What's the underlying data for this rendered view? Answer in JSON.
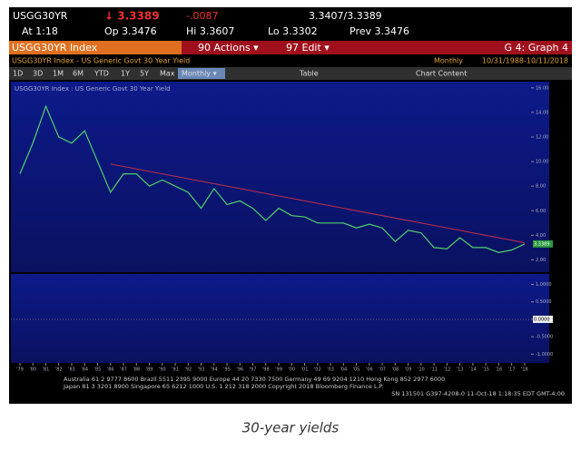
{
  "header": {
    "ticker": "USGG30YR",
    "last": "↓ 3.3389",
    "change": "-.0087",
    "bid_ask": "3.3407/3.3389",
    "time": "At 1:18",
    "open": "Op 3.3476",
    "high": "Hi 3.3607",
    "low": "Lo 3.3302",
    "prev": "Prev 3.3476"
  },
  "menu": {
    "security": "USGG30YR Index",
    "actions": "90 Actions ▾",
    "edit": "97 Edit ▾",
    "graph": "G 4: Graph 4"
  },
  "info": {
    "left": "USGG30YR Index - US Generic Govt 30 Year Yield",
    "period": "Monthly",
    "range": "10/31/1988-10/11/2018"
  },
  "toolbar": [
    "1D",
    "3D",
    "1M",
    "6M",
    "YTD",
    "1Y",
    "5Y",
    "Max",
    "Monthly ▾",
    "Table",
    "Chart Content"
  ],
  "chart_data": {
    "type": "line",
    "title": "USGG30YR Index : US Generic Govt 30 Year Yield",
    "x": [
      1979,
      1980,
      1981,
      1982,
      1983,
      1984,
      1985,
      1986,
      1987,
      1988,
      1989,
      1990,
      1991,
      1992,
      1993,
      1994,
      1995,
      1996,
      1997,
      1998,
      1999,
      2000,
      2001,
      2002,
      2003,
      2004,
      2005,
      2006,
      2007,
      2008,
      2009,
      2010,
      2011,
      2012,
      2013,
      2014,
      2015,
      2016,
      2017,
      2018
    ],
    "series": [
      {
        "name": "USGG30YR",
        "color": "#4fd06a",
        "values": [
          9.0,
          11.5,
          14.5,
          12.0,
          11.5,
          12.5,
          10.0,
          7.5,
          9.0,
          9.0,
          8.0,
          8.5,
          8.0,
          7.5,
          6.2,
          7.8,
          6.5,
          6.8,
          6.2,
          5.2,
          6.2,
          5.6,
          5.5,
          5.0,
          5.0,
          5.0,
          4.6,
          4.9,
          4.6,
          3.5,
          4.4,
          4.2,
          3.0,
          2.9,
          3.8,
          3.0,
          3.0,
          2.6,
          2.8,
          3.3
        ]
      }
    ],
    "trend": {
      "color": "#c0304a",
      "x": [
        1986,
        2018
      ],
      "values": [
        9.8,
        3.4
      ]
    },
    "last_label": "3.3389",
    "xlim": [
      1978.3,
      2018.5
    ],
    "xticks": [
      {
        "value": 1979,
        "label": "'79"
      },
      {
        "value": 1980,
        "label": "'80"
      },
      {
        "value": 1981,
        "label": "'81"
      },
      {
        "value": 1982,
        "label": "'82"
      },
      {
        "value": 1983,
        "label": "'83"
      },
      {
        "value": 1984,
        "label": "'84"
      },
      {
        "value": 1985,
        "label": "'85"
      },
      {
        "value": 1986,
        "label": "'86"
      },
      {
        "value": 1987,
        "label": "'87"
      },
      {
        "value": 1988,
        "label": "'88"
      },
      {
        "value": 1989,
        "label": "'89"
      },
      {
        "value": 1990,
        "label": "'90"
      },
      {
        "value": 1991,
        "label": "'91"
      },
      {
        "value": 1992,
        "label": "'92"
      },
      {
        "value": 1993,
        "label": "'93"
      },
      {
        "value": 1994,
        "label": "'94"
      },
      {
        "value": 1995,
        "label": "'95"
      },
      {
        "value": 1996,
        "label": "'96"
      },
      {
        "value": 1997,
        "label": "'97"
      },
      {
        "value": 1998,
        "label": "'98"
      },
      {
        "value": 1999,
        "label": "'99"
      },
      {
        "value": 2000,
        "label": "'00"
      },
      {
        "value": 2001,
        "label": "'01"
      },
      {
        "value": 2002,
        "label": "'02"
      },
      {
        "value": 2003,
        "label": "'03"
      },
      {
        "value": 2004,
        "label": "'04"
      },
      {
        "value": 2005,
        "label": "'05"
      },
      {
        "value": 2006,
        "label": "'06"
      },
      {
        "value": 2007,
        "label": "'07"
      },
      {
        "value": 2008,
        "label": "'08"
      },
      {
        "value": 2009,
        "label": "'09"
      },
      {
        "value": 2010,
        "label": "'10"
      },
      {
        "value": 2011,
        "label": "'11"
      },
      {
        "value": 2012,
        "label": "'12"
      },
      {
        "value": 2013,
        "label": "'13"
      },
      {
        "value": 2014,
        "label": "'14"
      },
      {
        "value": 2015,
        "label": "'15"
      },
      {
        "value": 2016,
        "label": "'16"
      },
      {
        "value": 2017,
        "label": "'17"
      },
      {
        "value": 2018,
        "label": "'18"
      }
    ],
    "ylim": [
      1,
      16.5
    ],
    "yticks": [
      {
        "value": 16,
        "label": "16.00"
      },
      {
        "value": 14,
        "label": "14.00"
      },
      {
        "value": 12,
        "label": "12.00"
      },
      {
        "value": 10,
        "label": "10.00"
      },
      {
        "value": 8,
        "label": "8.00"
      },
      {
        "value": 6,
        "label": "6.00"
      },
      {
        "value": 4,
        "label": "4.00"
      },
      {
        "value": 2,
        "label": "2.00"
      }
    ],
    "lower_panel": {
      "ylim": [
        -1.25,
        1.3
      ],
      "last_label": "0.0000",
      "yticks": [
        {
          "value": 1,
          "label": "1.0000"
        },
        {
          "value": 0.5,
          "label": "0.5000"
        },
        {
          "value": 0,
          "label": "0.0000"
        },
        {
          "value": -0.5,
          "label": "-0.5000"
        },
        {
          "value": -1,
          "label": "-1.0000"
        }
      ]
    }
  },
  "footer": [
    "Australia 61 2 9777 8600 Brazil 5511 2395 9000 Europe 44 20 7330 7500 Germany 49 69 9204 1210 Hong Kong 852 2977 6000",
    "Japan 81 3 3201 8900    Singapore 65 6212 1000    U.S. 1 212 318 2000    Copyright 2018 Bloomberg Finance L.P.",
    "SN 131501 G397-4208-0 11-Oct-18 1:18:35 EDT  GMT-4:00"
  ],
  "caption": "30-year yields"
}
